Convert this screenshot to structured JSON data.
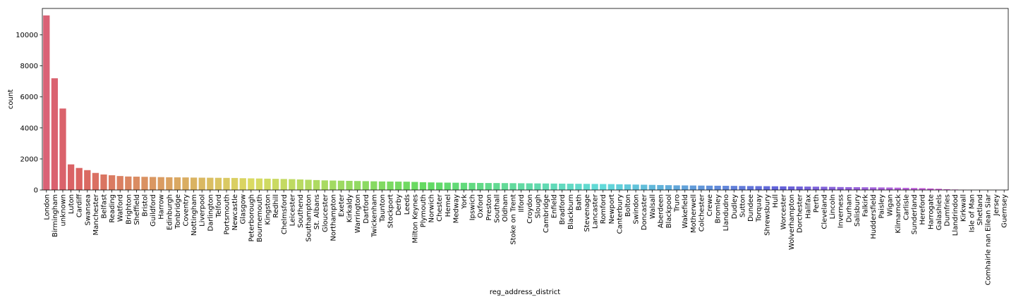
{
  "chart_data": {
    "type": "bar",
    "title": "",
    "xlabel": "reg_address_district",
    "ylabel": "count",
    "ylim": [
      0,
      11700
    ],
    "yticks": [
      0,
      2000,
      4000,
      6000,
      8000,
      10000
    ],
    "grid": false,
    "categories": [
      "London",
      "Birmingham",
      "unknown",
      "Luton",
      "Cardiff",
      "Swansea",
      "Manchester",
      "Belfast",
      "Reading",
      "Watford",
      "Brighton",
      "Sheffield",
      "Bristol",
      "Guildford",
      "Harrow",
      "Edinburgh",
      "Tonbridge",
      "Coventry",
      "Nottingham",
      "Liverpool",
      "Darlington",
      "Telford",
      "Portsmouth",
      "Newcastle",
      "Glasgow",
      "Peterborough",
      "Bournemouth",
      "Kingston",
      "Redhill",
      "Chelmsford",
      "Leicester",
      "Southend",
      "Southampton",
      "St. Albans",
      "Gloucester",
      "Northampton",
      "Exeter",
      "Kirkaldy",
      "Warrington",
      "Dartford",
      "Twickenham",
      "Taunton",
      "Stockport",
      "Derby",
      "Leeds",
      "Milton Keynes",
      "Plymouth",
      "Norwich",
      "Chester",
      "Hemel",
      "Medway",
      "York",
      "Ipswich",
      "Oxford",
      "Preston",
      "Southall",
      "Oldham",
      "Stoke on Trent",
      "Ilford",
      "Croydon",
      "Slough",
      "Cambridge",
      "Enfield",
      "Bradford",
      "Blackburn",
      "Bath",
      "Stevenage",
      "Lancaster",
      "Romford",
      "Newport",
      "Canterbury",
      "Bolton",
      "Swindon",
      "Doncaster",
      "Walsall",
      "Aberdeen",
      "Blackpool",
      "Truro",
      "Wakefield",
      "Motherwell",
      "Colchester",
      "Crewe",
      "Bromley",
      "Llandudno",
      "Dudley",
      "Sutton",
      "Dundee",
      "Torquay",
      "Shrewsbury",
      "Hull",
      "Worcester",
      "Wolverhampton",
      "Dorchester",
      "Halifax",
      "Perth",
      "Cleveland",
      "Lincoln",
      "Inverness",
      "Durham",
      "Salisbury",
      "Falkirk",
      "Huddersfield",
      "Paisley",
      "Wigan",
      "Kilmarnock",
      "Carlisle",
      "Sunderland",
      "Hereford",
      "Harrogate",
      "Galashiels",
      "Dumfries",
      "Llandrindod",
      "Kirkwall",
      "Isle of Man",
      "Shetland",
      "Comhairle nan Eilean Siar",
      "Jersey",
      "Guernsey"
    ],
    "values": [
      11250,
      7200,
      5250,
      1650,
      1420,
      1280,
      1100,
      1000,
      950,
      900,
      870,
      860,
      850,
      840,
      830,
      820,
      815,
      810,
      800,
      795,
      790,
      785,
      780,
      775,
      760,
      750,
      740,
      730,
      720,
      710,
      700,
      680,
      660,
      640,
      620,
      610,
      600,
      590,
      580,
      570,
      560,
      550,
      545,
      540,
      535,
      520,
      500,
      490,
      480,
      475,
      470,
      465,
      460,
      455,
      450,
      448,
      445,
      440,
      435,
      430,
      425,
      420,
      415,
      410,
      405,
      400,
      395,
      390,
      385,
      380,
      370,
      360,
      350,
      340,
      330,
      320,
      310,
      300,
      295,
      290,
      285,
      280,
      275,
      270,
      265,
      260,
      255,
      250,
      245,
      240,
      235,
      230,
      225,
      220,
      215,
      210,
      200,
      190,
      185,
      180,
      175,
      170,
      165,
      160,
      150,
      140,
      130,
      120,
      100,
      80,
      50,
      30,
      10,
      5,
      3,
      2,
      1,
      1
    ]
  }
}
